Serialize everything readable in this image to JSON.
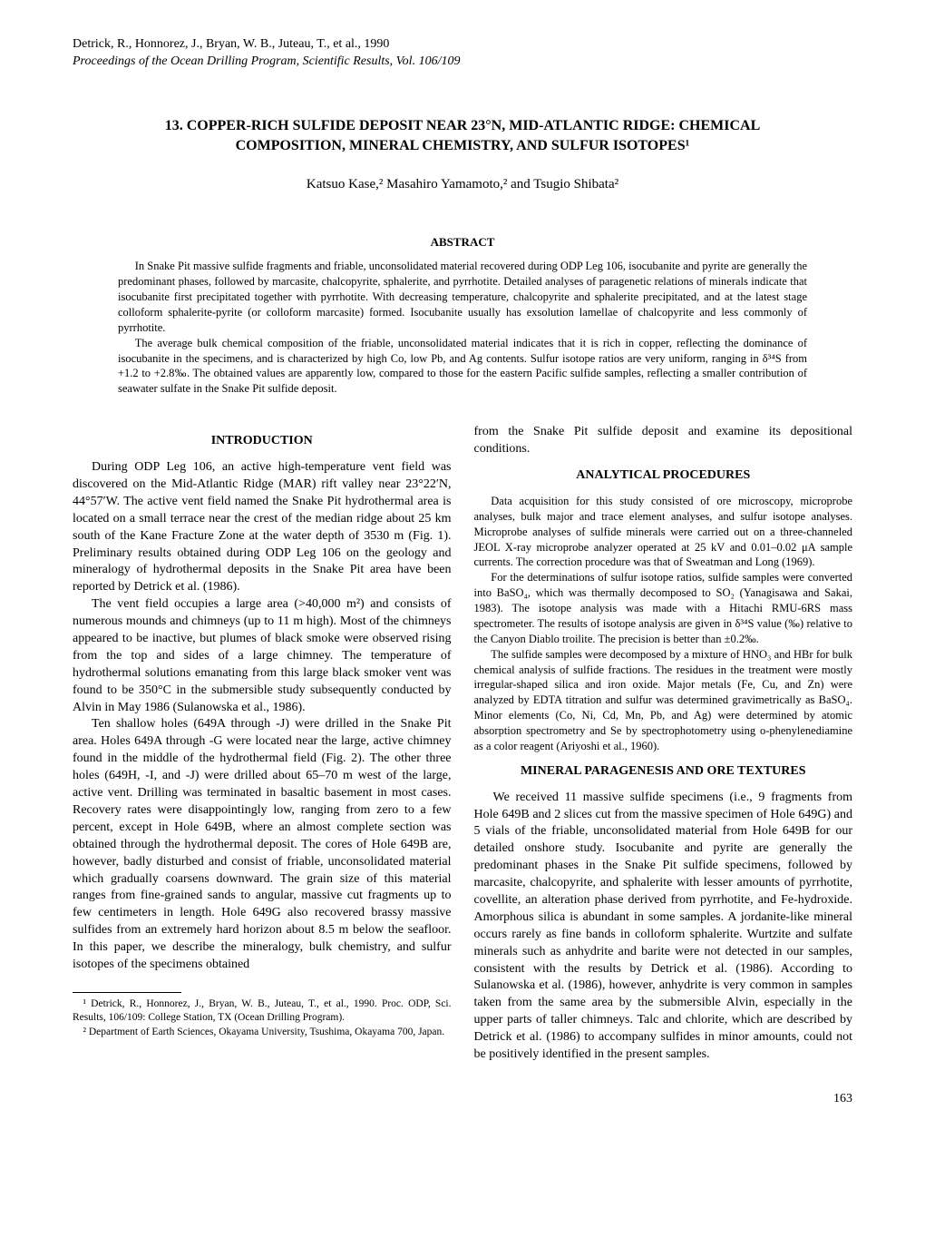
{
  "header": {
    "citation_line1": "Detrick, R., Honnorez, J., Bryan, W. B., Juteau, T., et al., 1990",
    "citation_line2": "Proceedings of the Ocean Drilling Program, Scientific Results, Vol. 106/109"
  },
  "title": "13. COPPER-RICH SULFIDE DEPOSIT NEAR 23°N, MID-ATLANTIC RIDGE: CHEMICAL COMPOSITION, MINERAL CHEMISTRY, AND SULFUR ISOTOPES¹",
  "authors": "Katsuo Kase,² Masahiro Yamamoto,² and Tsugio Shibata²",
  "abstract": {
    "heading": "ABSTRACT",
    "para1": "In Snake Pit massive sulfide fragments and friable, unconsolidated material recovered during ODP Leg 106, isocubanite and pyrite are generally the predominant phases, followed by marcasite, chalcopyrite, sphalerite, and pyrrhotite. Detailed analyses of paragenetic relations of minerals indicate that isocubanite first precipitated together with pyrrhotite. With decreasing temperature, chalcopyrite and sphalerite precipitated, and at the latest stage colloform sphalerite-pyrite (or colloform marcasite) formed. Isocubanite usually has exsolution lamellae of chalcopyrite and less commonly of pyrrhotite.",
    "para2": "The average bulk chemical composition of the friable, unconsolidated material indicates that it is rich in copper, reflecting the dominance of isocubanite in the specimens, and is characterized by high Co, low Pb, and Ag contents. Sulfur isotope ratios are very uniform, ranging in δ³⁴S from +1.2 to +2.8‰. The obtained values are apparently low, compared to those for the eastern Pacific sulfide samples, reflecting a smaller contribution of seawater sulfate in the Snake Pit sulfide deposit."
  },
  "left": {
    "intro_heading": "INTRODUCTION",
    "intro_p1": "During ODP Leg 106, an active high-temperature vent field was discovered on the Mid-Atlantic Ridge (MAR) rift valley near 23°22′N, 44°57′W. The active vent field named the Snake Pit hydrothermal area is located on a small terrace near the crest of the median ridge about 25 km south of the Kane Fracture Zone at the water depth of 3530 m (Fig. 1). Preliminary results obtained during ODP Leg 106 on the geology and mineralogy of hydrothermal deposits in the Snake Pit area have been reported by Detrick et al. (1986).",
    "intro_p2": "The vent field occupies a large area (>40,000 m²) and consists of numerous mounds and chimneys (up to 11 m high). Most of the chimneys appeared to be inactive, but plumes of black smoke were observed rising from the top and sides of a large chimney. The temperature of hydrothermal solutions emanating from this large black smoker vent was found to be 350°C in the submersible study subsequently conducted by Alvin in May 1986 (Sulanowska et al., 1986).",
    "intro_p3": "Ten shallow holes (649A through -J) were drilled in the Snake Pit area. Holes 649A through -G were located near the large, active chimney found in the middle of the hydrothermal field (Fig. 2). The other three holes (649H, -I, and -J) were drilled about 65–70 m west of the large, active vent. Drilling was terminated in basaltic basement in most cases. Recovery rates were disappointingly low, ranging from zero to a few percent, except in Hole 649B, where an almost complete section was obtained through the hydrothermal deposit. The cores of Hole 649B are, however, badly disturbed and consist of friable, unconsolidated material which gradually coarsens downward. The grain size of this material ranges from fine-grained sands to angular, massive cut fragments up to few centimeters in length. Hole 649G also recovered brassy massive sulfides from an extremely hard horizon about 8.5 m below the seafloor. In this paper, we describe the mineralogy, bulk chemistry, and sulfur isotopes of the specimens obtained"
  },
  "right": {
    "cont_p": "from the Snake Pit sulfide deposit and examine its depositional conditions.",
    "analytical_heading": "ANALYTICAL PROCEDURES",
    "analytical_p1": "Data acquisition for this study consisted of ore microscopy, microprobe analyses, bulk major and trace element analyses, and sulfur isotope analyses. Microprobe analyses of sulfide minerals were carried out on a three-channeled JEOL X-ray microprobe analyzer operated at 25 kV and 0.01–0.02 μA sample currents. The correction procedure was that of Sweatman and Long (1969).",
    "analytical_p2": "For the determinations of sulfur isotope ratios, sulfide samples were converted into BaSO₄, which was thermally decomposed to SO₂ (Yanagisawa and Sakai, 1983). The isotope analysis was made with a Hitachi RMU-6RS mass spectrometer. The results of isotope analysis are given in δ³⁴S value (‰) relative to the Canyon Diablo troilite. The precision is better than ±0.2‰.",
    "analytical_p3": "The sulfide samples were decomposed by a mixture of HNO₃ and HBr for bulk chemical analysis of sulfide fractions. The residues in the treatment were mostly irregular-shaped silica and iron oxide. Major metals (Fe, Cu, and Zn) were analyzed by EDTA titration and sulfur was determined gravimetrically as BaSO₄. Minor elements (Co, Ni, Cd, Mn, Pb, and Ag) were determined by atomic absorption spectrometry and Se by spectrophotometry using o-phenylenediamine as a color reagent (Ariyoshi et al., 1960).",
    "mineral_heading": "MINERAL PARAGENESIS AND ORE TEXTURES",
    "mineral_p1": "We received 11 massive sulfide specimens (i.e., 9 fragments from Hole 649B and 2 slices cut from the massive specimen of Hole 649G) and 5 vials of the friable, unconsolidated material from Hole 649B for our detailed onshore study. Isocubanite and pyrite are generally the predominant phases in the Snake Pit sulfide specimens, followed by marcasite, chalcopyrite, and sphalerite with lesser amounts of pyrrhotite, covellite, an alteration phase derived from pyrrhotite, and Fe-hydroxide. Amorphous silica is abundant in some samples. A jordanite-like mineral occurs rarely as fine bands in colloform sphalerite. Wurtzite and sulfate minerals such as anhydrite and barite were not detected in our samples, consistent with the results by Detrick et al. (1986). According to Sulanowska et al. (1986), however, anhydrite is very common in samples taken from the same area by the submersible Alvin, especially in the upper parts of taller chimneys. Talc and chlorite, which are described by Detrick et al. (1986) to accompany sulfides in minor amounts, could not be positively identified in the present samples."
  },
  "footnotes": {
    "fn1": "¹ Detrick, R., Honnorez, J., Bryan, W. B., Juteau, T., et al., 1990. Proc. ODP, Sci. Results, 106/109: College Station, TX (Ocean Drilling Program).",
    "fn2": "² Department of Earth Sciences, Okayama University, Tsushima, Okayama 700, Japan."
  },
  "page_number": "163"
}
